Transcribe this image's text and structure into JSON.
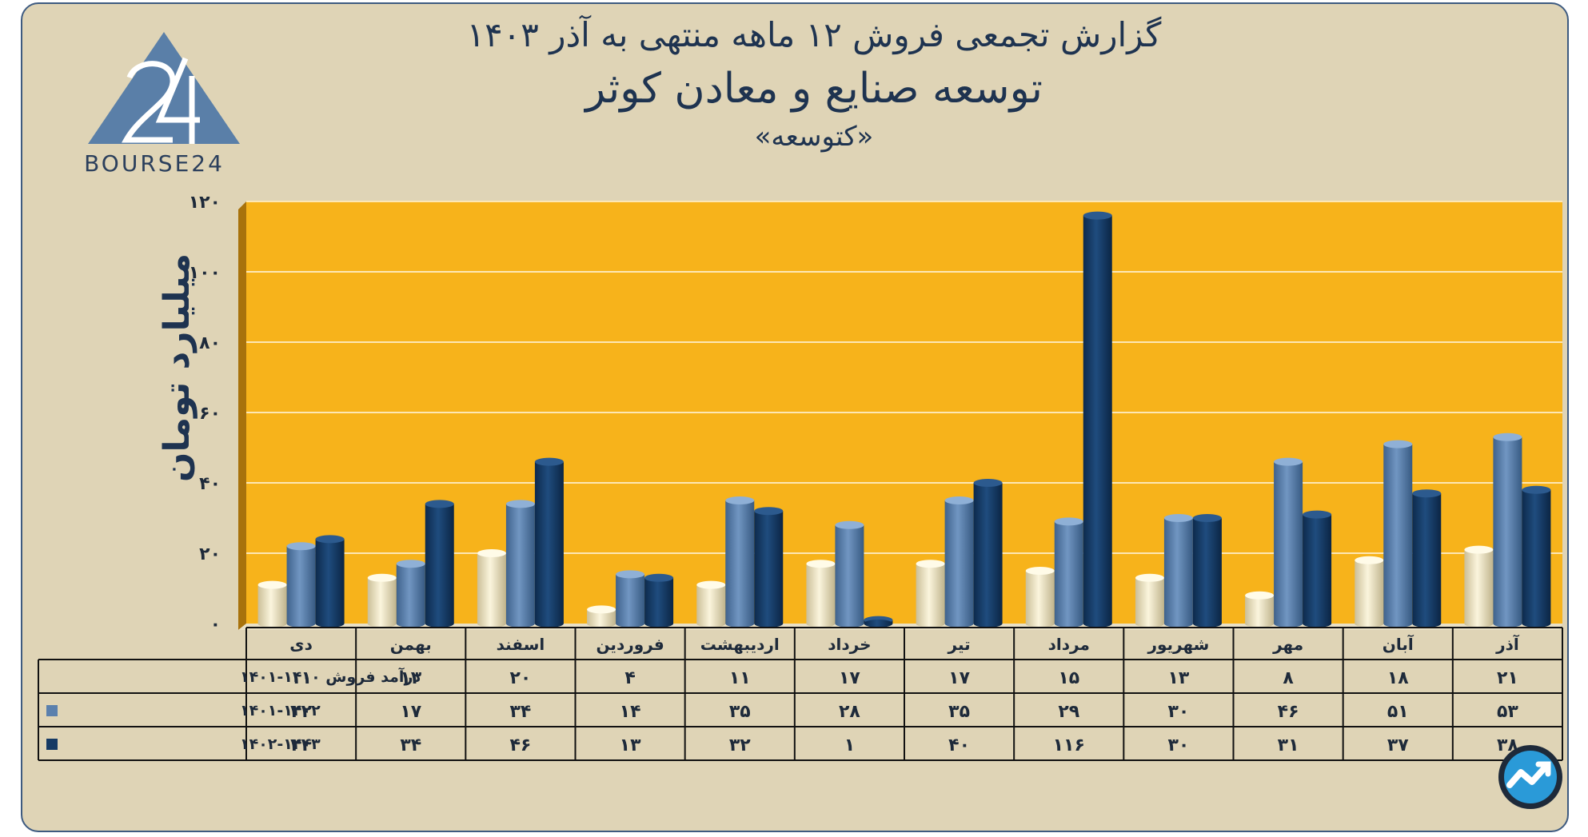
{
  "title": "گزارش تجمعی فروش ۱۲ ماهه منتهی به آذر ۱۴۰۳",
  "subtitle": "توسعه صنایع و معادن کوثر",
  "ticker": "«کتوسعه»",
  "brand": "BOURSE24",
  "chart_data": {
    "type": "bar",
    "ylabel": "میلیارد تومان",
    "ylim": [
      0,
      120
    ],
    "yticks": [
      0,
      20,
      40,
      60,
      80,
      100,
      120
    ],
    "ytick_labels": [
      "۰",
      "۲۰",
      "۴۰",
      "۶۰",
      "۸۰",
      "۱۰۰",
      "۱۲۰"
    ],
    "categories": [
      "دی",
      "بهمن",
      "اسفند",
      "فروردین",
      "اردیبهشت",
      "خرداد",
      "تیر",
      "مرداد",
      "شهریور",
      "مهر",
      "آبان",
      "آذر"
    ],
    "series": [
      {
        "name": "درآمد فروش ۱۴۰۰-۱۴۰۱",
        "values": [
          11,
          13,
          20,
          4,
          11,
          17,
          17,
          15,
          13,
          8,
          18,
          21
        ],
        "labels": [
          "۱۱",
          "۱۳",
          "۲۰",
          "۴",
          "۱۱",
          "۱۷",
          "۱۷",
          "۱۵",
          "۱۳",
          "۸",
          "۱۸",
          "۲۱"
        ],
        "color": "#efe6c6"
      },
      {
        "name": "۱۴۰۱-۱۴۰۲",
        "values": [
          22,
          17,
          34,
          14,
          35,
          28,
          35,
          29,
          30,
          46,
          51,
          53
        ],
        "labels": [
          "۲۲",
          "۱۷",
          "۳۴",
          "۱۴",
          "۳۵",
          "۲۸",
          "۳۵",
          "۲۹",
          "۳۰",
          "۴۶",
          "۵۱",
          "۵۳"
        ],
        "color": "#5b80ad"
      },
      {
        "name": "۱۴۰۲-۱۴۰۳",
        "values": [
          24,
          34,
          46,
          13,
          32,
          1,
          40,
          116,
          30,
          31,
          37,
          38
        ],
        "labels": [
          "۲۴",
          "۳۴",
          "۴۶",
          "۱۳",
          "۳۲",
          "۱",
          "۴۰",
          "۱۱۶",
          "۳۰",
          "۳۱",
          "۳۷",
          "۳۸"
        ],
        "color": "#163a64"
      }
    ],
    "plot_background": "#f7b31b",
    "grid": true,
    "legend": "table-below"
  }
}
